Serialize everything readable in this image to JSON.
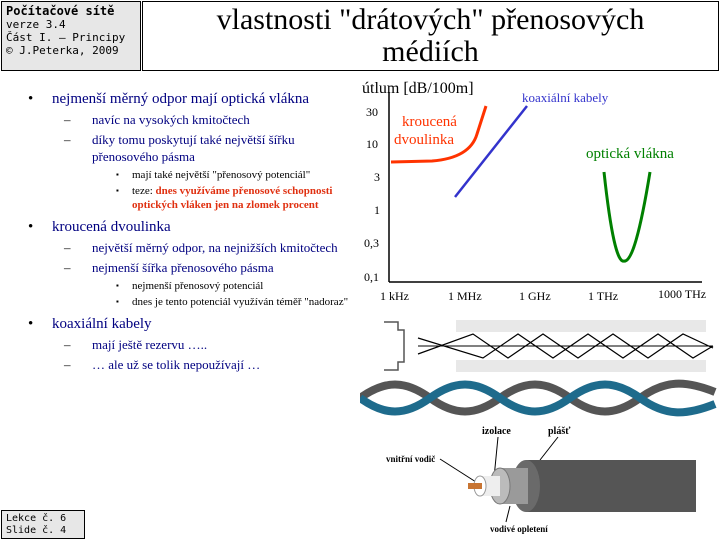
{
  "header": {
    "course_title": "Počítačové sítě",
    "version": "verze 3.4",
    "part": "Část I. – Principy",
    "copyright": "© J.Peterka, 2009"
  },
  "slide_title_line1": "vlastnosti \"drátových\" přenosových",
  "slide_title_line2": "médiích",
  "footer": {
    "lecture": "Lekce č. 6",
    "slide": "Slide č. 4"
  },
  "bullets": {
    "b1": "nejmenší měrný odpor mají optická vlákna",
    "b1_s1": "navíc na vysokých kmitočtech",
    "b1_s2": "díky tomu poskytují také největší šířku přenosového pásma",
    "b1_s2_a": "mají také největší \"přenosový potenciál\"",
    "b1_s2_b_prefix": "teze: ",
    "b1_s2_b_red": "dnes využíváme přenosové schopnosti optických vláken jen na zlomek procent",
    "b2": "kroucená dvoulinka",
    "b2_s1": "největší měrný odpor, na nejnižších kmitočtech",
    "b2_s2": "nejmenší šířka přenosového pásma",
    "b2_s2_a": "nejmenší přenosový potenciál",
    "b2_s2_b": "dnes je tento potenciál využíván téměř \"nadoraz\"",
    "b3": "koaxiální kabely",
    "b3_s1": "mají ještě rezervu …..",
    "b3_s2": "… ale už se tolik nepoužívají …"
  },
  "chart_data": {
    "type": "line",
    "ylabel": "útlum [dB/100m]",
    "y_ticks": [
      "30",
      "10",
      "3",
      "1",
      "0,3",
      "0,1"
    ],
    "x_ticks": [
      "1 kHz",
      "1 MHz",
      "1 GHz",
      "1 THz",
      "1000 THz"
    ],
    "y_scale": "log",
    "x_scale": "log",
    "series": [
      {
        "name": "kroucená dvoulinka",
        "color": "#ff3300"
      },
      {
        "name": "koaxiální kabely",
        "color": "#3333cc"
      },
      {
        "name": "optická vlákna",
        "color": "#008000"
      }
    ]
  },
  "cable_labels": {
    "insulation": "izolace",
    "jacket": "plášť",
    "inner_conductor": "vnitřní vodič",
    "braid": "vodivé opletení"
  }
}
